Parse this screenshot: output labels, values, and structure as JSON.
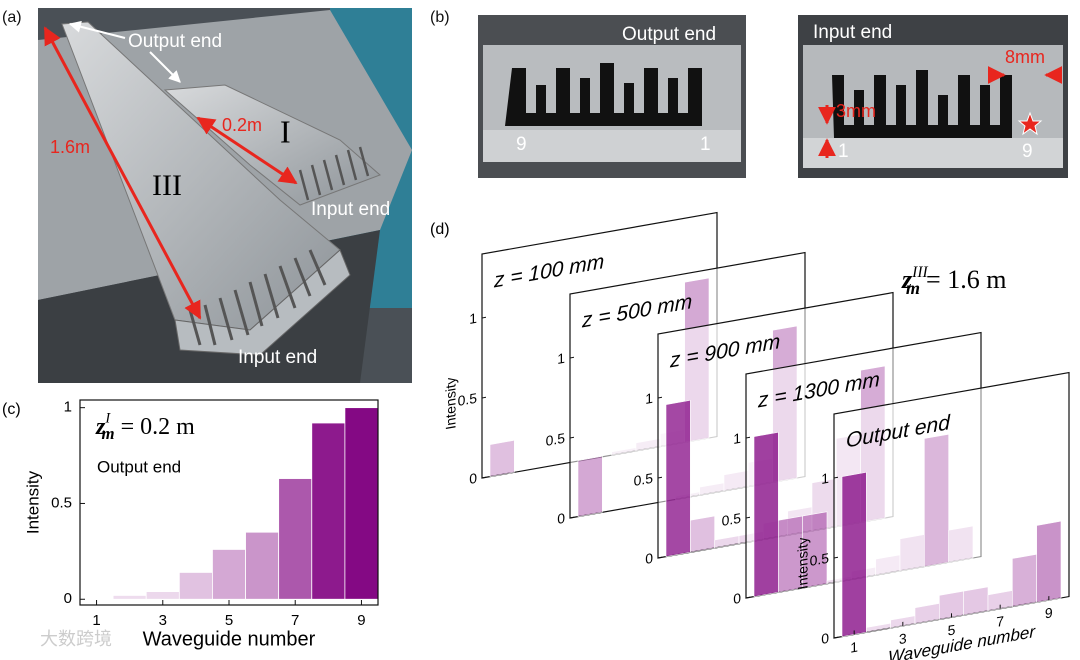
{
  "panel_a": {
    "label": "(a)",
    "output_end": "Output end",
    "length_long": "1.6m",
    "length_short": "0.2m",
    "guide_short": "I",
    "guide_long": "III",
    "input_end_short": "Input end",
    "input_end_long": "Input end"
  },
  "panel_b": {
    "label": "(b)",
    "output_photo": {
      "title": "Output end",
      "left_index": "9",
      "right_index": "1"
    },
    "input_photo": {
      "title": "Input end",
      "width": "8mm",
      "gap": "3mm",
      "left_index": "1",
      "right_index": "9"
    }
  },
  "watermark": "大数跨境",
  "chart_data": [
    {
      "type": "bar",
      "label": "(c)",
      "annotation": {
        "symbol": "z",
        "subscript": "m",
        "superscript": "I",
        "equals": "= 0.2 m"
      },
      "subtitle": "Output end",
      "xlabel": "Waveguide number",
      "ylabel": "Intensity",
      "x": [
        1,
        2,
        3,
        4,
        5,
        6,
        7,
        8,
        9
      ],
      "values": [
        0,
        0.02,
        0.04,
        0.14,
        0.26,
        0.35,
        0.63,
        0.92,
        1.0
      ],
      "xlim": [
        0.5,
        9.5
      ],
      "xticks": [
        1,
        3,
        5,
        7,
        9
      ],
      "ylim": [
        -0.03,
        1.04
      ],
      "yticks": [
        0,
        0.5,
        1
      ],
      "color": "#800080"
    },
    {
      "type": "panels",
      "label": "(d)",
      "annotation": {
        "symbol": "z",
        "subscript": "m",
        "superscript": "III",
        "equals": "= 1.6 m"
      },
      "xlabel": "Waveguide number",
      "ylabel": "Intensity",
      "x": [
        1,
        2,
        3,
        4,
        5,
        6,
        7,
        8,
        9
      ],
      "xlim": [
        0.5,
        9.5
      ],
      "xticks": [
        1,
        3,
        5,
        7,
        9
      ],
      "ylim": [
        0,
        1.4
      ],
      "yticks": [
        0,
        0.5,
        1
      ],
      "color": "#800080",
      "series": [
        {
          "name": "z = 100 mm",
          "values": [
            0.2,
            0,
            0,
            0,
            0,
            0.02,
            0.05,
            0.08,
            1.0
          ]
        },
        {
          "name": "z = 500 mm",
          "values": [
            0.35,
            0,
            0,
            0,
            0.02,
            0.05,
            0.1,
            0.15,
            0.95
          ]
        },
        {
          "name": "z = 900 mm",
          "values": [
            0.95,
            0.2,
            0.05,
            0.05,
            0.1,
            0.15,
            0.3,
            0.55,
            0.95
          ]
        },
        {
          "name": "z = 1300 mm",
          "values": [
            1.0,
            0.45,
            0.45,
            0.02,
            0.05,
            0.1,
            0.2,
            0.8,
            0.2
          ]
        },
        {
          "name": "Output end",
          "values": [
            1.0,
            0.03,
            0.05,
            0.1,
            0.15,
            0.15,
            0.1,
            0.3,
            0.48
          ]
        }
      ]
    }
  ]
}
